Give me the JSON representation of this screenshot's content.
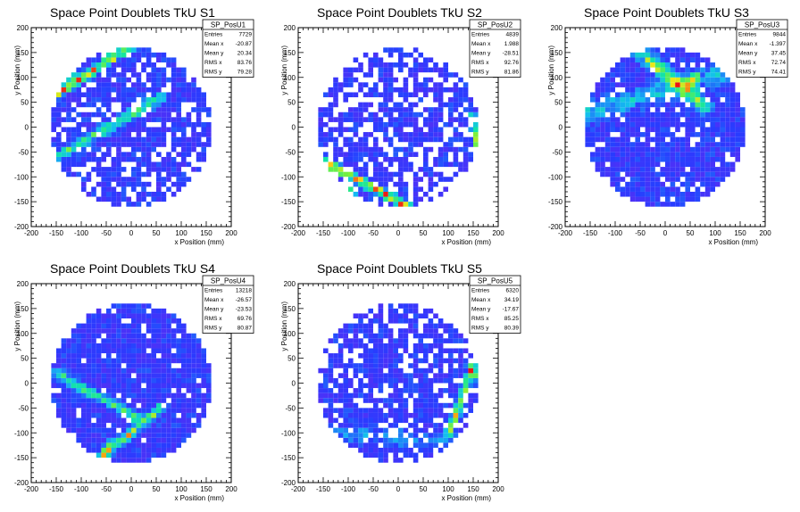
{
  "chart_data": [
    {
      "type": "heatmap",
      "title": "Space Point Doublets TkU S1",
      "xlabel": "x Position (mm)",
      "ylabel": "y Position (mm)",
      "xlim": [
        -200,
        200
      ],
      "ylim": [
        -200,
        200
      ],
      "x_ticks": [
        "-200",
        "-150",
        "-100",
        "-50",
        "0",
        "50",
        "100",
        "150",
        "200"
      ],
      "y_ticks": [
        "-200",
        "-150",
        "-100",
        "-50",
        "0",
        "50",
        "100",
        "150",
        "200"
      ],
      "active_radius": 160,
      "bin_size": 10,
      "colormap": "rainbow",
      "bands": [
        {
          "x0": -160,
          "y0": 60,
          "x1": 10,
          "y1": 170,
          "width": 14,
          "strength": 0.7
        },
        {
          "x0": -150,
          "y0": -60,
          "x1": 60,
          "y1": 60,
          "width": 16,
          "strength": 0.45
        }
      ],
      "hotspots": [
        [
          -120,
          110
        ],
        [
          -130,
          100
        ]
      ],
      "sparsity": 0.22,
      "seed": 11,
      "stats": {
        "name": "SP_PosU1",
        "rows": [
          {
            "label": "Entries",
            "value": "7729"
          },
          {
            "label": "Mean x",
            "value": "-20.87"
          },
          {
            "label": "Mean y",
            "value": "20.34"
          },
          {
            "label": "RMS x",
            "value": "83.76"
          },
          {
            "label": "RMS y",
            "value": "79.28"
          }
        ]
      }
    },
    {
      "type": "heatmap",
      "title": "Space Point Doublets TkU S2",
      "xlabel": "x Position (mm)",
      "ylabel": "y Position (mm)",
      "xlim": [
        -200,
        200
      ],
      "ylim": [
        -200,
        200
      ],
      "x_ticks": [
        "-200",
        "-150",
        "-100",
        "-50",
        "0",
        "50",
        "100",
        "150",
        "200"
      ],
      "y_ticks": [
        "-200",
        "-150",
        "-100",
        "-50",
        "0",
        "50",
        "100",
        "150",
        "200"
      ],
      "active_radius": 160,
      "bin_size": 10,
      "colormap": "rainbow",
      "bands": [
        {
          "x0": -150,
          "y0": -70,
          "x1": 20,
          "y1": -160,
          "width": 14,
          "strength": 0.75
        },
        {
          "x0": 150,
          "y0": 20,
          "x1": 160,
          "y1": -60,
          "width": 12,
          "strength": 0.5
        }
      ],
      "hotspots": [
        [
          -100,
          -120
        ],
        [
          -90,
          -130
        ]
      ],
      "sparsity": 0.35,
      "seed": 23,
      "stats": {
        "name": "SP_PosU2",
        "rows": [
          {
            "label": "Entries",
            "value": "4839"
          },
          {
            "label": "Mean x",
            "value": "1.988"
          },
          {
            "label": "Mean y",
            "value": "-28.51"
          },
          {
            "label": "RMS x",
            "value": "92.76"
          },
          {
            "label": "RMS y",
            "value": "81.86"
          }
        ]
      }
    },
    {
      "type": "heatmap",
      "title": "Space Point Doublets TkU S3",
      "xlabel": "x Position (mm)",
      "ylabel": "y Position (mm)",
      "xlim": [
        -200,
        200
      ],
      "ylim": [
        -200,
        200
      ],
      "x_ticks": [
        "-200",
        "-150",
        "-100",
        "-50",
        "0",
        "50",
        "100",
        "150",
        "200"
      ],
      "y_ticks": [
        "-200",
        "-150",
        "-100",
        "-50",
        "0",
        "50",
        "100",
        "150",
        "200"
      ],
      "active_radius": 160,
      "bin_size": 10,
      "colormap": "rainbow",
      "bands": [
        {
          "x0": -60,
          "y0": 160,
          "x1": 80,
          "y1": 40,
          "width": 22,
          "strength": 0.55
        },
        {
          "x0": -150,
          "y0": 30,
          "x1": 150,
          "y1": 120,
          "width": 30,
          "strength": 0.3
        }
      ],
      "hotspots": [
        [
          60,
          100
        ],
        [
          50,
          90
        ]
      ],
      "sparsity": 0.1,
      "seed": 37,
      "stats": {
        "name": "SP_PosU3",
        "rows": [
          {
            "label": "Entries",
            "value": "9844"
          },
          {
            "label": "Mean x",
            "value": "-1.397"
          },
          {
            "label": "Mean y",
            "value": "37.45"
          },
          {
            "label": "RMS x",
            "value": "72.74"
          },
          {
            "label": "RMS y",
            "value": "74.41"
          }
        ]
      }
    },
    {
      "type": "heatmap",
      "title": "Space Point Doublets TkU S4",
      "xlabel": "x Position (mm)",
      "ylabel": "y Position (mm)",
      "xlim": [
        -200,
        200
      ],
      "ylim": [
        -200,
        200
      ],
      "x_ticks": [
        "-200",
        "-150",
        "-100",
        "-50",
        "0",
        "50",
        "100",
        "150",
        "200"
      ],
      "y_ticks": [
        "-200",
        "-150",
        "-100",
        "-50",
        "0",
        "50",
        "100",
        "150",
        "200"
      ],
      "active_radius": 160,
      "bin_size": 10,
      "colormap": "rainbow",
      "bands": [
        {
          "x0": -150,
          "y0": 20,
          "x1": 10,
          "y1": -70,
          "width": 14,
          "strength": 0.5
        },
        {
          "x0": -60,
          "y0": -150,
          "x1": 60,
          "y1": -50,
          "width": 14,
          "strength": 0.55
        }
      ],
      "hotspots": [
        [
          -50,
          -130
        ],
        [
          -40,
          -120
        ]
      ],
      "sparsity": 0.08,
      "seed": 41,
      "stats": {
        "name": "SP_PosU4",
        "rows": [
          {
            "label": "Entries",
            "value": "13218"
          },
          {
            "label": "Mean x",
            "value": "-26.57"
          },
          {
            "label": "Mean y",
            "value": "-23.53"
          },
          {
            "label": "RMS x",
            "value": "69.76"
          },
          {
            "label": "RMS y",
            "value": "80.87"
          }
        ]
      }
    },
    {
      "type": "heatmap",
      "title": "Space Point Doublets TkU S5",
      "xlabel": "x Position (mm)",
      "ylabel": "y Position (mm)",
      "xlim": [
        -200,
        200
      ],
      "ylim": [
        -200,
        200
      ],
      "x_ticks": [
        "-200",
        "-150",
        "-100",
        "-50",
        "0",
        "50",
        "100",
        "150",
        "200"
      ],
      "y_ticks": [
        "-200",
        "-150",
        "-100",
        "-50",
        "0",
        "50",
        "100",
        "150",
        "200"
      ],
      "active_radius": 160,
      "bin_size": 10,
      "colormap": "rainbow",
      "bands": [
        {
          "x0": 150,
          "y0": 40,
          "x1": 100,
          "y1": -110,
          "width": 14,
          "strength": 0.55
        },
        {
          "x0": -130,
          "y0": -100,
          "x1": 80,
          "y1": -120,
          "width": 25,
          "strength": 0.2
        }
      ],
      "hotspots": [
        [
          150,
          20
        ],
        [
          160,
          10
        ]
      ],
      "sparsity": 0.25,
      "seed": 53,
      "stats": {
        "name": "SP_PosU5",
        "rows": [
          {
            "label": "Entries",
            "value": "6320"
          },
          {
            "label": "Mean x",
            "value": "34.19"
          },
          {
            "label": "Mean y",
            "value": "-17.67"
          },
          {
            "label": "RMS x",
            "value": "85.25"
          },
          {
            "label": "RMS y",
            "value": "80.39"
          }
        ]
      }
    }
  ]
}
